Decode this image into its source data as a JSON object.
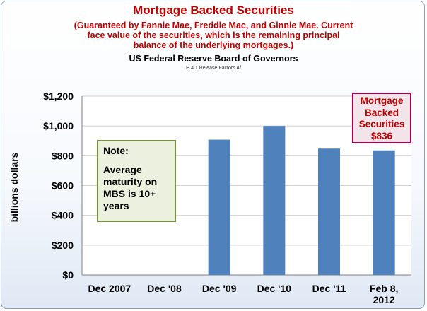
{
  "header": {
    "title": "Mortgage Backed Securities",
    "subtitle_line1": "(Guaranteed by Fannie Mae, Freddie Mac, and Ginnie Mae.  Current",
    "subtitle_line2": "face value of the securities, which is  the remaining principal",
    "subtitle_line3": "balance of the underlying mortgages.)",
    "source": "US Federal Reserve Board of Governors",
    "source_code": "H.4.1 Release Factors Af"
  },
  "note": {
    "heading": "Note:",
    "line1": "Average",
    "line2": "maturity on",
    "line3": "MBS is 10+",
    "line4": "years"
  },
  "callout": {
    "line1": "Mortgage",
    "line2": "Backed",
    "line3": "Securities",
    "line4": "$836"
  },
  "colors": {
    "bar": "#4f81bd",
    "title": "#c00000",
    "note_border": "#77933c",
    "note_fill": "#ebf1de",
    "callout_border": "#a5004f"
  },
  "chart_data": {
    "type": "bar",
    "ylabel": "billions dollars",
    "xlabel": "",
    "categories": [
      "Dec 2007",
      "Dec '08",
      "Dec '09",
      "Dec '10",
      "Dec '11",
      "Feb 8, 2012"
    ],
    "category_lines": [
      [
        "Dec 2007"
      ],
      [
        "Dec '08"
      ],
      [
        "Dec '09"
      ],
      [
        "Dec '10"
      ],
      [
        "Dec '11"
      ],
      [
        "Feb 8,",
        "2012"
      ]
    ],
    "values": [
      null,
      null,
      908,
      1000,
      848,
      836
    ],
    "ylim": [
      0,
      1200
    ],
    "yticks": [
      0,
      200,
      400,
      600,
      800,
      1000,
      1200
    ],
    "ytick_labels": [
      "$0",
      "$200",
      "$400",
      "$600",
      "$800",
      "$1,000",
      "$1,200"
    ],
    "grid": true,
    "legend": "none"
  }
}
